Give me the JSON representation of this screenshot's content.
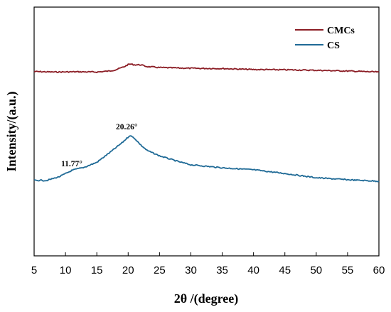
{
  "chart_data": {
    "type": "line",
    "title": "",
    "xlabel": "2θ /(degree)",
    "ylabel": "Intensity/(a.u.)",
    "xlim": [
      5,
      60
    ],
    "ylim": [
      0,
      100
    ],
    "x_ticks": [
      5,
      10,
      15,
      20,
      25,
      30,
      35,
      40,
      45,
      50,
      55,
      60
    ],
    "y_ticks": [],
    "grid": false,
    "legend_position": "top-right",
    "series": [
      {
        "name": "CMCs",
        "color": "#8b1c24",
        "x": [
          5,
          8,
          12,
          15,
          17,
          18,
          19,
          19.5,
          20,
          20.3,
          21,
          22,
          23,
          25,
          30,
          35,
          40,
          45,
          50,
          55,
          60
        ],
        "y": [
          74.1,
          73.9,
          74.0,
          73.9,
          74.3,
          74.8,
          75.7,
          76.2,
          76.9,
          77.1,
          76.8,
          76.8,
          76.1,
          75.7,
          75.4,
          75.3,
          74.9,
          74.8,
          74.6,
          74.3,
          73.9
        ]
      },
      {
        "name": "CS",
        "color": "#1f6a96",
        "x": [
          5,
          7,
          9,
          11,
          11.77,
          13,
          15,
          17,
          19,
          20.26,
          21,
          22,
          23,
          25,
          28,
          30,
          35,
          40,
          45,
          50,
          55,
          60
        ],
        "y": [
          30.4,
          30.3,
          31.8,
          34.3,
          34.9,
          35.6,
          37.6,
          41.4,
          45.4,
          48.4,
          47.3,
          44.6,
          42.4,
          40.2,
          37.9,
          36.6,
          35.4,
          34.6,
          33.1,
          31.4,
          30.6,
          30.0
        ]
      }
    ],
    "annotations": [
      {
        "text": "20.26°",
        "x": 20.26,
        "series": "CS"
      },
      {
        "text": "11.77°",
        "x": 11.77,
        "series": "CS"
      }
    ]
  }
}
